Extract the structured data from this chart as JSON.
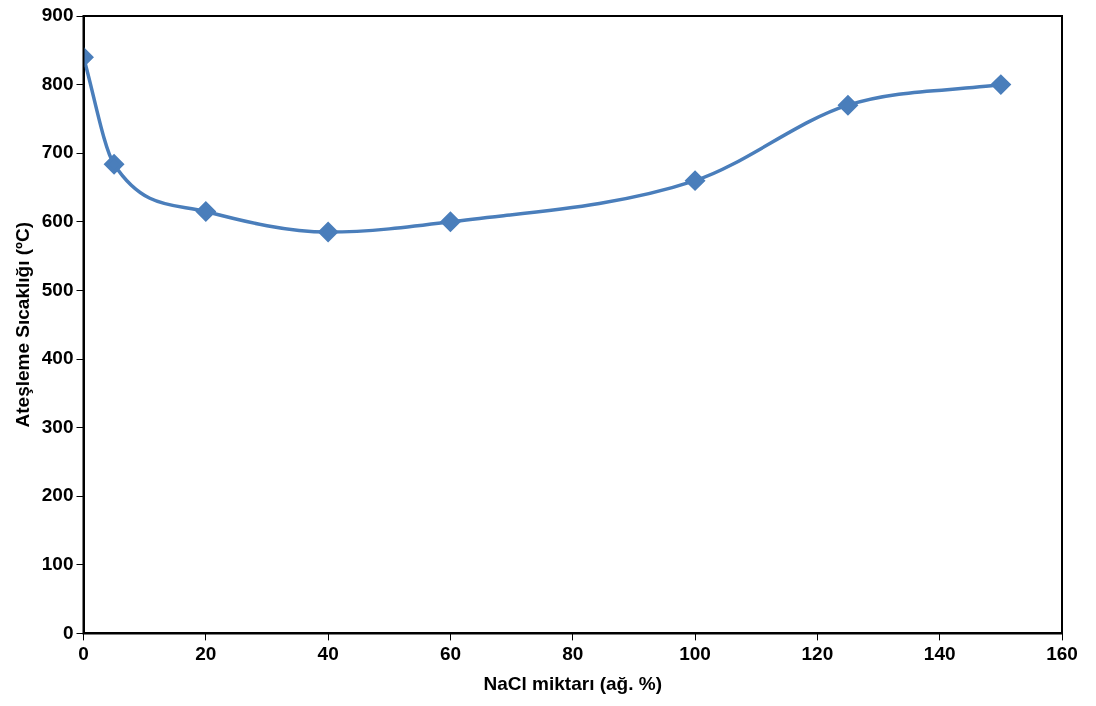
{
  "chart_data": {
    "type": "line",
    "xlabel": "NaCl miktarı (ağ. %)",
    "ylabel": "Ateşleme Sıcaklığı (ºC)",
    "x": [
      0,
      5,
      20,
      40,
      60,
      100,
      125,
      150
    ],
    "series": [
      {
        "color": "#4a7ebb",
        "values": [
          840,
          684,
          615,
          585,
          600,
          660,
          770,
          800
        ]
      }
    ],
    "xlim": [
      0,
      160
    ],
    "xticks": [
      0,
      20,
      40,
      60,
      80,
      100,
      120,
      140,
      160
    ],
    "ylim": [
      0,
      900
    ],
    "yticks": [
      0,
      100,
      200,
      300,
      400,
      500,
      600,
      700,
      800,
      900
    ],
    "grid": false,
    "legend": false,
    "marker": "diamond",
    "line_style": "solid"
  }
}
